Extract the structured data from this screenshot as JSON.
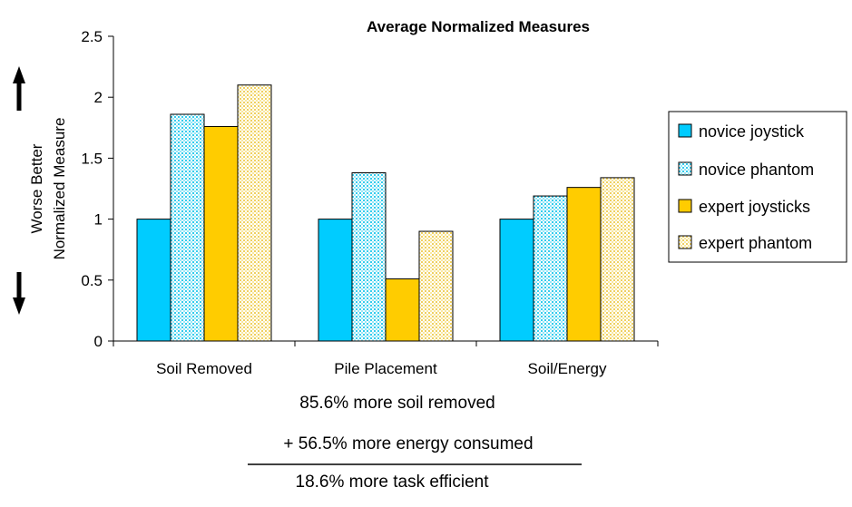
{
  "chart_data": {
    "type": "bar",
    "title": "Average Normalized Measures",
    "xlabel": "",
    "ylabel": "Normalized Measure",
    "ylim": [
      0,
      2.5
    ],
    "yticks": [
      "0",
      "0.5",
      "1",
      "1.5",
      "2",
      "2.5"
    ],
    "ytick_values": [
      0,
      0.5,
      1,
      1.5,
      2,
      2.5
    ],
    "categories": [
      "Soil Removed",
      "Pile Placement",
      "Soil/Energy"
    ],
    "series": [
      {
        "name": "novice joystick",
        "values": [
          1.0,
          1.0,
          1.0
        ],
        "color": "#00ccff",
        "pattern": "solid"
      },
      {
        "name": "novice phantom",
        "values": [
          1.86,
          1.38,
          1.19
        ],
        "color": "#ccecff",
        "pattern": "dots-blue"
      },
      {
        "name": "expert joysticks",
        "values": [
          1.76,
          0.51,
          1.26
        ],
        "color": "#ffcc00",
        "pattern": "solid"
      },
      {
        "name": "expert phantom",
        "values": [
          2.1,
          0.9,
          1.34
        ],
        "color": "#ffffcc",
        "pattern": "dots-yellow"
      }
    ],
    "grid": false,
    "legend_position": "right"
  },
  "annotations": {
    "line1": "85.6% more soil removed",
    "line2": "+ 56.5% more energy consumed",
    "line3": "18.6% more task efficient"
  },
  "side_label": {
    "text": "Worse Better",
    "arrow_up": "up-arrow-icon",
    "arrow_down": "down-arrow-icon"
  }
}
